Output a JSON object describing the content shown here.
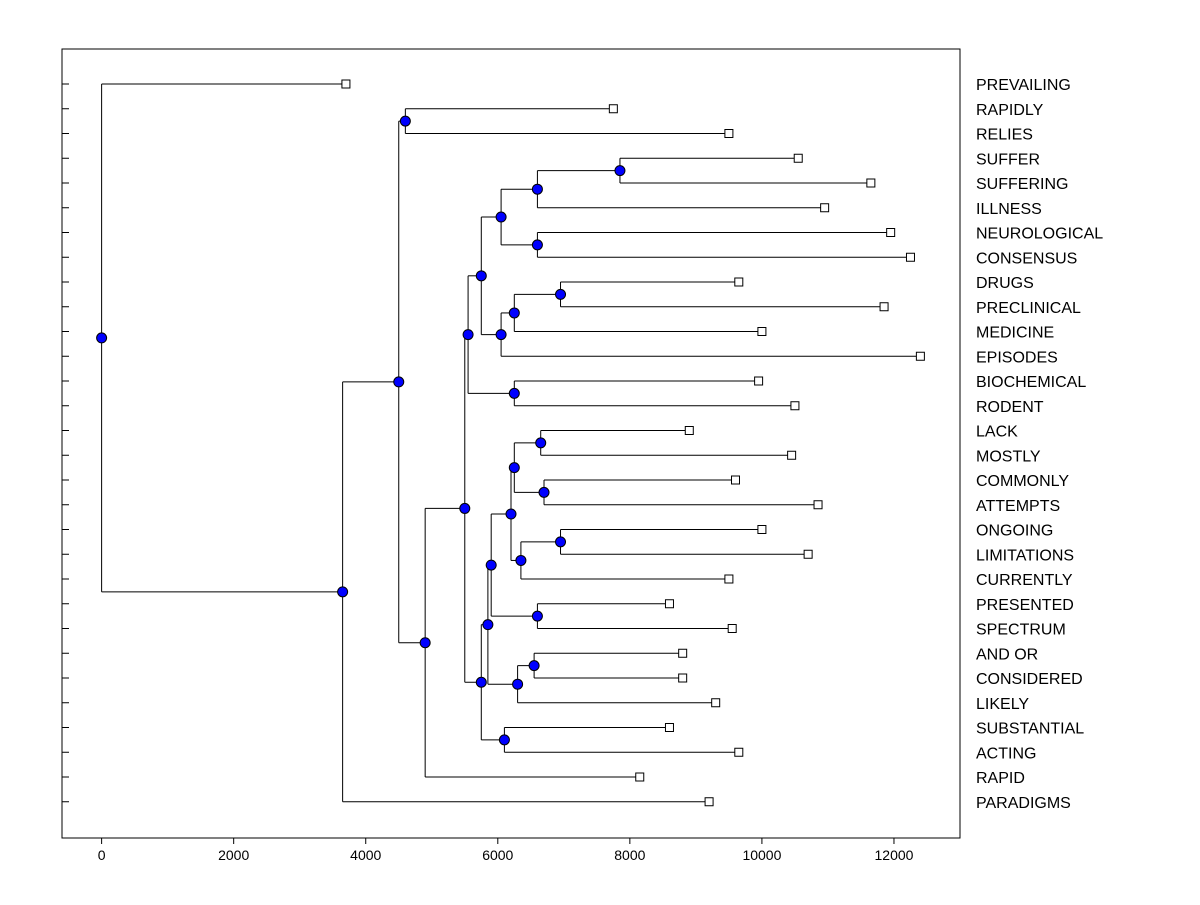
{
  "chart_data": {
    "type": "dendrogram",
    "orientation": "horizontal",
    "xlim": [
      -600,
      13000
    ],
    "xticks": [
      0,
      2000,
      4000,
      6000,
      8000,
      10000,
      12000
    ],
    "xtick_labels": [
      "0",
      "2000",
      "4000",
      "6000",
      "8000",
      "10000",
      "12000"
    ],
    "colors": {
      "node": "#0000ff",
      "leaf_fill": "#ffffff",
      "line": "#000000"
    },
    "leaves": [
      {
        "label": "PREVAILING",
        "x": 3700
      },
      {
        "label": "RAPIDLY",
        "x": 7750
      },
      {
        "label": "RELIES",
        "x": 9500
      },
      {
        "label": "SUFFER",
        "x": 10550
      },
      {
        "label": "SUFFERING",
        "x": 11650
      },
      {
        "label": "ILLNESS",
        "x": 10950
      },
      {
        "label": "NEUROLOGICAL",
        "x": 11950
      },
      {
        "label": "CONSENSUS",
        "x": 12250
      },
      {
        "label": "DRUGS",
        "x": 9650
      },
      {
        "label": "PRECLINICAL",
        "x": 11850
      },
      {
        "label": "MEDICINE",
        "x": 10000
      },
      {
        "label": "EPISODES",
        "x": 12400
      },
      {
        "label": "BIOCHEMICAL",
        "x": 9950
      },
      {
        "label": "RODENT",
        "x": 10500
      },
      {
        "label": "LACK",
        "x": 8900
      },
      {
        "label": "MOSTLY",
        "x": 10450
      },
      {
        "label": "COMMONLY",
        "x": 9600
      },
      {
        "label": "ATTEMPTS",
        "x": 10850
      },
      {
        "label": "ONGOING",
        "x": 10000
      },
      {
        "label": "LIMITATIONS",
        "x": 10700
      },
      {
        "label": "CURRENTLY",
        "x": 9500
      },
      {
        "label": "PRESENTED",
        "x": 8600
      },
      {
        "label": "SPECTRUM",
        "x": 9550
      },
      {
        "label": "AND OR",
        "x": 8800
      },
      {
        "label": "CONSIDERED",
        "x": 8800
      },
      {
        "label": "LIKELY",
        "x": 9300
      },
      {
        "label": "SUBSTANTIAL",
        "x": 8600
      },
      {
        "label": "ACTING",
        "x": 9650
      },
      {
        "label": "RAPID",
        "x": 8150
      },
      {
        "label": "PARADIGMS",
        "x": 9200
      }
    ],
    "nodes": [
      {
        "id": "n1",
        "x": 7850,
        "children": [
          "SUFFER",
          "SUFFERING"
        ]
      },
      {
        "id": "n2",
        "x": 6600,
        "children": [
          "n1",
          "ILLNESS"
        ]
      },
      {
        "id": "n3",
        "x": 6600,
        "children": [
          "NEUROLOGICAL",
          "CONSENSUS"
        ]
      },
      {
        "id": "n4",
        "x": 6050,
        "children": [
          "n2",
          "n3"
        ]
      },
      {
        "id": "n5",
        "x": 6950,
        "children": [
          "DRUGS",
          "PRECLINICAL"
        ]
      },
      {
        "id": "n6",
        "x": 6250,
        "children": [
          "n5",
          "MEDICINE"
        ]
      },
      {
        "id": "n7",
        "x": 6050,
        "children": [
          "n6",
          "EPISODES"
        ]
      },
      {
        "id": "n8",
        "x": 5750,
        "children": [
          "n4",
          "n7"
        ]
      },
      {
        "id": "n9",
        "x": 6250,
        "children": [
          "BIOCHEMICAL",
          "RODENT"
        ]
      },
      {
        "id": "n10",
        "x": 5550,
        "children": [
          "n8",
          "n9"
        ]
      },
      {
        "id": "n11",
        "x": 4600,
        "children": [
          "RAPIDLY",
          "RELIES"
        ]
      },
      {
        "id": "n12",
        "x": 6650,
        "children": [
          "LACK",
          "MOSTLY"
        ]
      },
      {
        "id": "n13",
        "x": 6700,
        "children": [
          "COMMONLY",
          "ATTEMPTS"
        ]
      },
      {
        "id": "n14",
        "x": 6250,
        "children": [
          "n12",
          "n13"
        ]
      },
      {
        "id": "n15",
        "x": 6950,
        "children": [
          "ONGOING",
          "LIMITATIONS"
        ]
      },
      {
        "id": "n16",
        "x": 6350,
        "children": [
          "n15",
          "CURRENTLY"
        ]
      },
      {
        "id": "n17",
        "x": 6200,
        "children": [
          "n14",
          "n16"
        ]
      },
      {
        "id": "n18",
        "x": 6600,
        "children": [
          "PRESENTED",
          "SPECTRUM"
        ]
      },
      {
        "id": "n19",
        "x": 5900,
        "children": [
          "n17",
          "n18"
        ]
      },
      {
        "id": "n20",
        "x": 6550,
        "children": [
          "AND OR",
          "CONSIDERED"
        ]
      },
      {
        "id": "n21",
        "x": 6300,
        "children": [
          "n20",
          "LIKELY"
        ]
      },
      {
        "id": "n22",
        "x": 5850,
        "children": [
          "n19",
          "n21"
        ]
      },
      {
        "id": "n23",
        "x": 6100,
        "children": [
          "SUBSTANTIAL",
          "ACTING"
        ]
      },
      {
        "id": "n24",
        "x": 5750,
        "children": [
          "n22",
          "n23"
        ]
      },
      {
        "id": "n25",
        "x": 5500,
        "children": [
          "n10",
          "n24"
        ]
      },
      {
        "id": "n26",
        "x": 4900,
        "children": [
          "n25",
          "RAPID"
        ]
      },
      {
        "id": "n27",
        "x": 4500,
        "children": [
          "n11",
          "n26"
        ]
      },
      {
        "id": "n28",
        "x": 3650,
        "children": [
          "n27",
          "PARADIGMS"
        ]
      },
      {
        "id": "n29",
        "x": 0,
        "children": [
          "PREVAILING",
          "n28"
        ]
      }
    ]
  }
}
